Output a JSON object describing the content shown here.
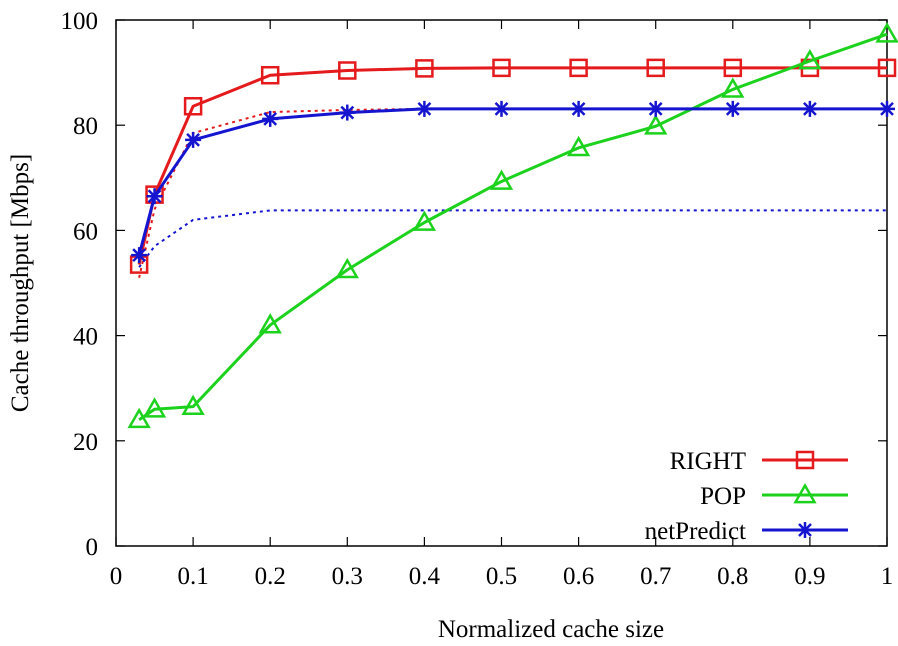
{
  "chart_data": {
    "type": "line",
    "title": "",
    "xlabel": "Normalized cache size",
    "ylabel": "Cache throughput [Mbps]",
    "xlim": [
      0,
      1
    ],
    "ylim": [
      0,
      100
    ],
    "x_ticks": [
      0,
      0.1,
      0.2,
      0.3,
      0.4,
      0.5,
      0.6,
      0.7,
      0.8,
      0.9,
      1
    ],
    "x_tick_labels": [
      "0",
      "0.1",
      "0.2",
      "0.3",
      "0.4",
      "0.5",
      "0.6",
      "0.7",
      "0.8",
      "0.9",
      "1"
    ],
    "y_ticks": [
      0,
      20,
      40,
      60,
      80,
      100
    ],
    "y_tick_labels": [
      "0",
      "20",
      "40",
      "60",
      "80",
      "100"
    ],
    "grid": false,
    "legend_position": "bottom-right",
    "x": [
      0.03,
      0.05,
      0.1,
      0.2,
      0.3,
      0.4,
      0.5,
      0.6,
      0.7,
      0.8,
      0.9,
      1.0
    ],
    "series": [
      {
        "name": "RIGHT",
        "color": "#e41a1c",
        "marker": "square",
        "values": [
          53.5,
          66.8,
          83.6,
          89.5,
          90.4,
          90.8,
          90.9,
          90.9,
          90.9,
          90.9,
          90.9,
          90.9
        ]
      },
      {
        "name": "POP",
        "color": "#1cd21c",
        "marker": "triangle",
        "values": [
          24.0,
          26.0,
          26.5,
          42.0,
          52.5,
          61.5,
          69.3,
          75.7,
          79.8,
          86.8,
          92.2,
          97.3
        ]
      },
      {
        "name": "netPredict",
        "color": "#1515d0",
        "marker": "asterisk",
        "values": [
          55.3,
          66.5,
          77.2,
          81.2,
          82.4,
          83.1,
          83.1,
          83.1,
          83.1,
          83.1,
          83.1,
          83.1
        ]
      }
    ],
    "reference_lines": [
      {
        "color": "#e41a1c",
        "style": "dotted",
        "x": [
          0.03,
          0.05,
          0.1,
          0.2,
          0.3,
          0.4,
          0.5,
          0.6,
          0.7,
          0.8,
          0.9,
          1.0
        ],
        "values": [
          51.0,
          64.0,
          78.5,
          82.5,
          82.9,
          83.1,
          83.1,
          83.1,
          83.1,
          83.1,
          83.1,
          83.1
        ]
      },
      {
        "color": "#1515d0",
        "style": "dotted",
        "x": [
          0.03,
          0.05,
          0.1,
          0.2,
          0.3,
          0.4,
          0.5,
          0.6,
          0.7,
          0.8,
          0.9,
          1.0
        ],
        "values": [
          53.0,
          57.0,
          62.0,
          63.8,
          63.8,
          63.8,
          63.8,
          63.8,
          63.8,
          63.8,
          63.8,
          63.8
        ]
      }
    ]
  }
}
